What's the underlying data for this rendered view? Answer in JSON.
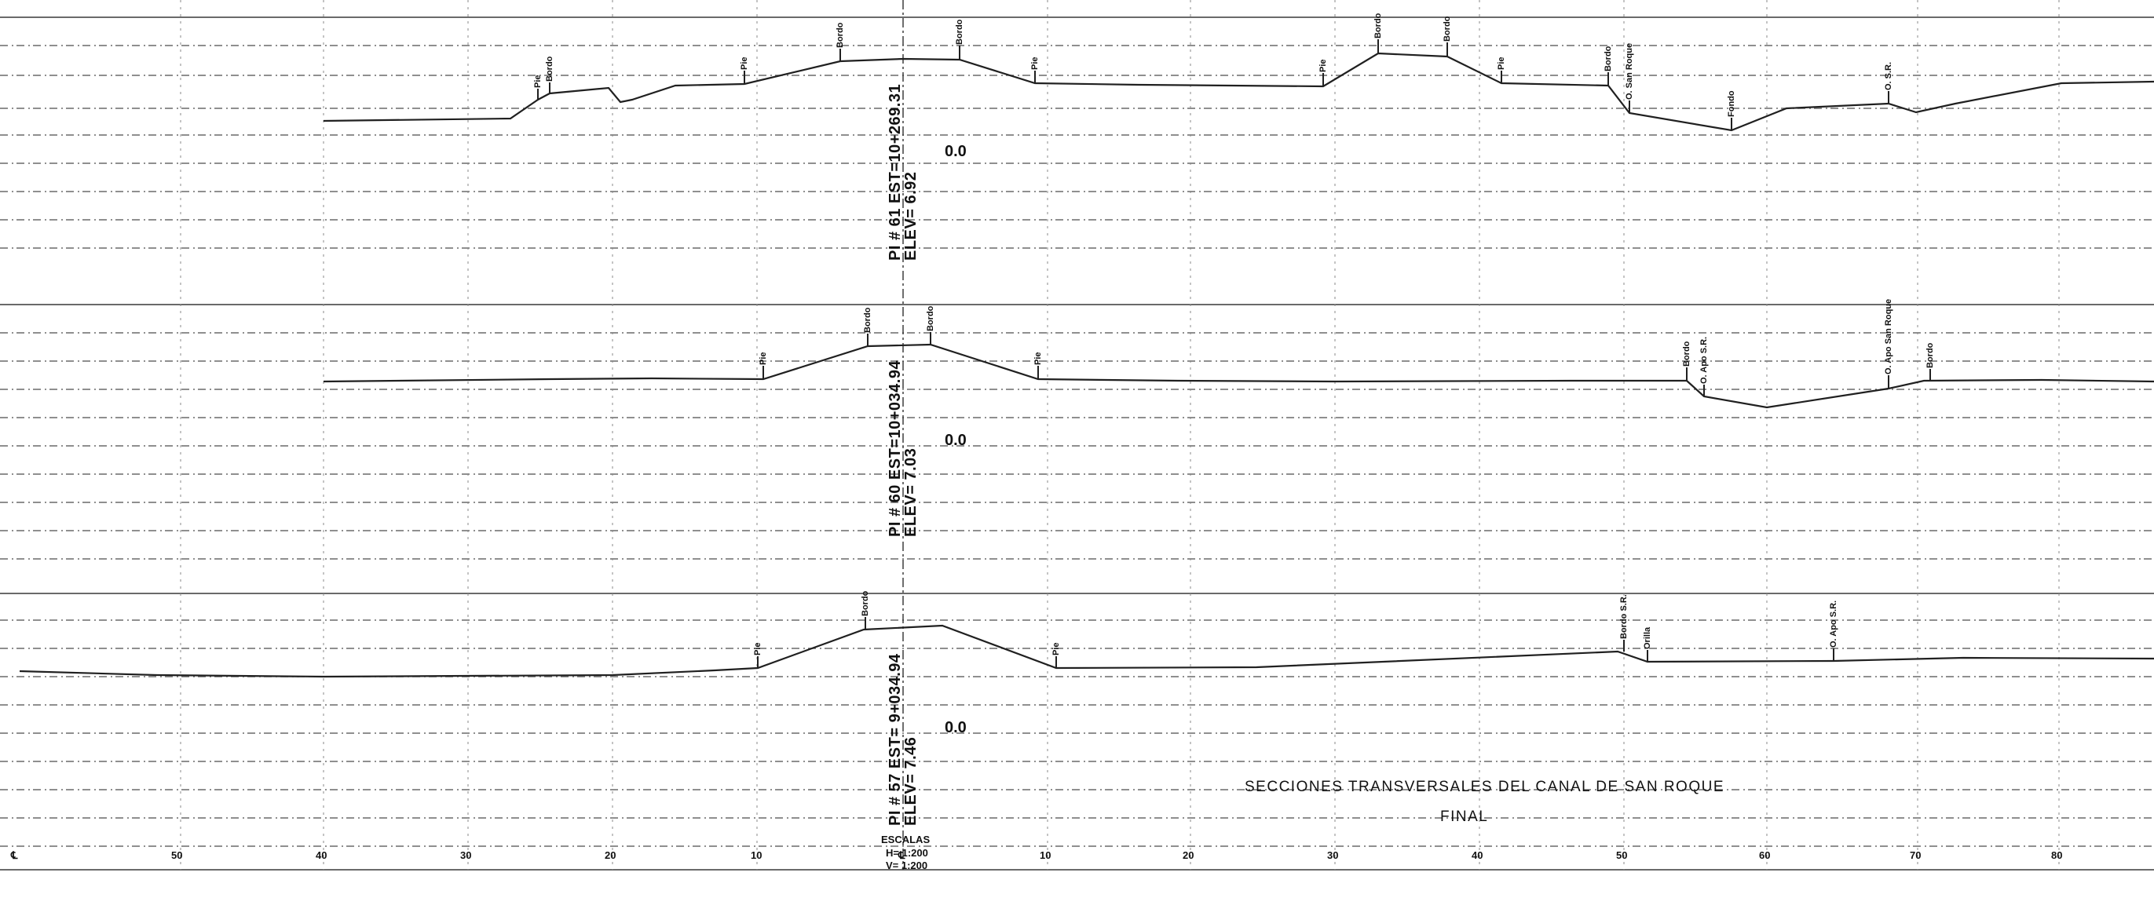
{
  "sections": [
    {
      "station_label": "PI # 61 EST=10+269.31",
      "elev_label": "ELEV= 6.92",
      "zero_label": "0.0",
      "tags": [
        "Pie",
        "Bordo",
        "Pie",
        "Bordo",
        "Bordo",
        "Pie",
        "Pie",
        "Bordo",
        "Bordo",
        "Pie",
        "Bordo",
        "O. San Roque",
        "Fondo",
        "O. S.R."
      ]
    },
    {
      "station_label": "PI # 60 EST=10+034.94",
      "elev_label": "ELEV= 7.03",
      "zero_label": "0.0",
      "tags": [
        "Pie",
        "Bordo",
        "Bordo",
        "Pie",
        "Bordo",
        "O. Apo S.R.",
        "O. Apo San Roque",
        "Bordo"
      ]
    },
    {
      "station_label": "PI # 57 EST= 9+034.94",
      "elev_label": "ELEV= 7.46",
      "zero_label": "0.0",
      "tags": [
        "Pie",
        "Bordo",
        "Pie",
        "Bordo S.R.",
        "Orilla",
        "O. Apo S.R."
      ]
    }
  ],
  "axis": {
    "left_marker": "℄",
    "center_marker": "℄",
    "left_labels": [
      "50",
      "40",
      "30",
      "20",
      "10"
    ],
    "right_labels": [
      "10",
      "20",
      "30",
      "40",
      "50",
      "60",
      "70",
      "80"
    ]
  },
  "title": {
    "line1": "SECCIONES TRANSVERSALES DEL CANAL DE SAN ROQUE",
    "line2": "FINAL"
  },
  "scales": {
    "heading": "ESCALAS",
    "horizontal": "H= 1:200",
    "vertical": "V= 1:200"
  }
}
